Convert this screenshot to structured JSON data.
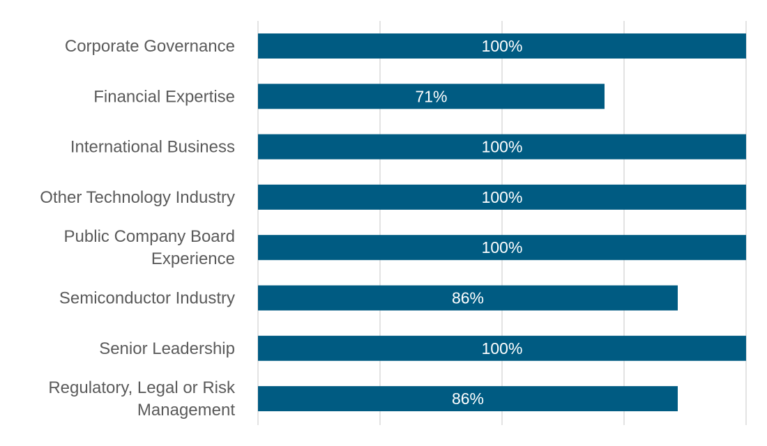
{
  "chart_data": {
    "type": "bar",
    "orientation": "horizontal",
    "categories": [
      [
        "Corporate Governance"
      ],
      [
        "Financial Expertise"
      ],
      [
        "International Business"
      ],
      [
        "Other Technology Industry"
      ],
      [
        "Public Company Board",
        "Experience"
      ],
      [
        "Semiconductor Industry"
      ],
      [
        "Senior Leadership"
      ],
      [
        "Regulatory, Legal or Risk",
        "Management"
      ]
    ],
    "values": [
      100,
      71,
      100,
      100,
      100,
      86,
      100,
      86
    ],
    "data_labels": [
      "100%",
      "71%",
      "100%",
      "100%",
      "100%",
      "86%",
      "100%",
      "86%"
    ],
    "xlim": [
      0,
      100
    ],
    "gridlines": [
      0,
      25,
      50,
      75,
      100
    ],
    "grid": true,
    "title": "",
    "xlabel": "",
    "ylabel": "",
    "bar_color": "#005b82",
    "grid_color": "#e3e3e3",
    "label_color": "#5a5a5a"
  }
}
